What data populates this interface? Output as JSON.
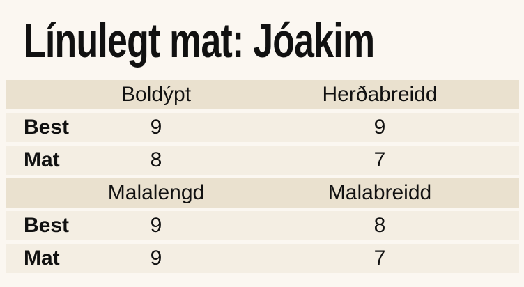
{
  "title": "Línulegt mat: Jóakim",
  "sections": [
    {
      "headers": [
        "Boldýpt",
        "Herðabreidd"
      ],
      "rows": [
        {
          "label": "Best",
          "values": [
            9,
            9
          ]
        },
        {
          "label": "Mat",
          "values": [
            8,
            7
          ]
        }
      ]
    },
    {
      "headers": [
        "Malalengd",
        "Malabreidd"
      ],
      "rows": [
        {
          "label": "Best",
          "values": [
            9,
            8
          ]
        },
        {
          "label": "Mat",
          "values": [
            9,
            7
          ]
        }
      ]
    }
  ]
}
